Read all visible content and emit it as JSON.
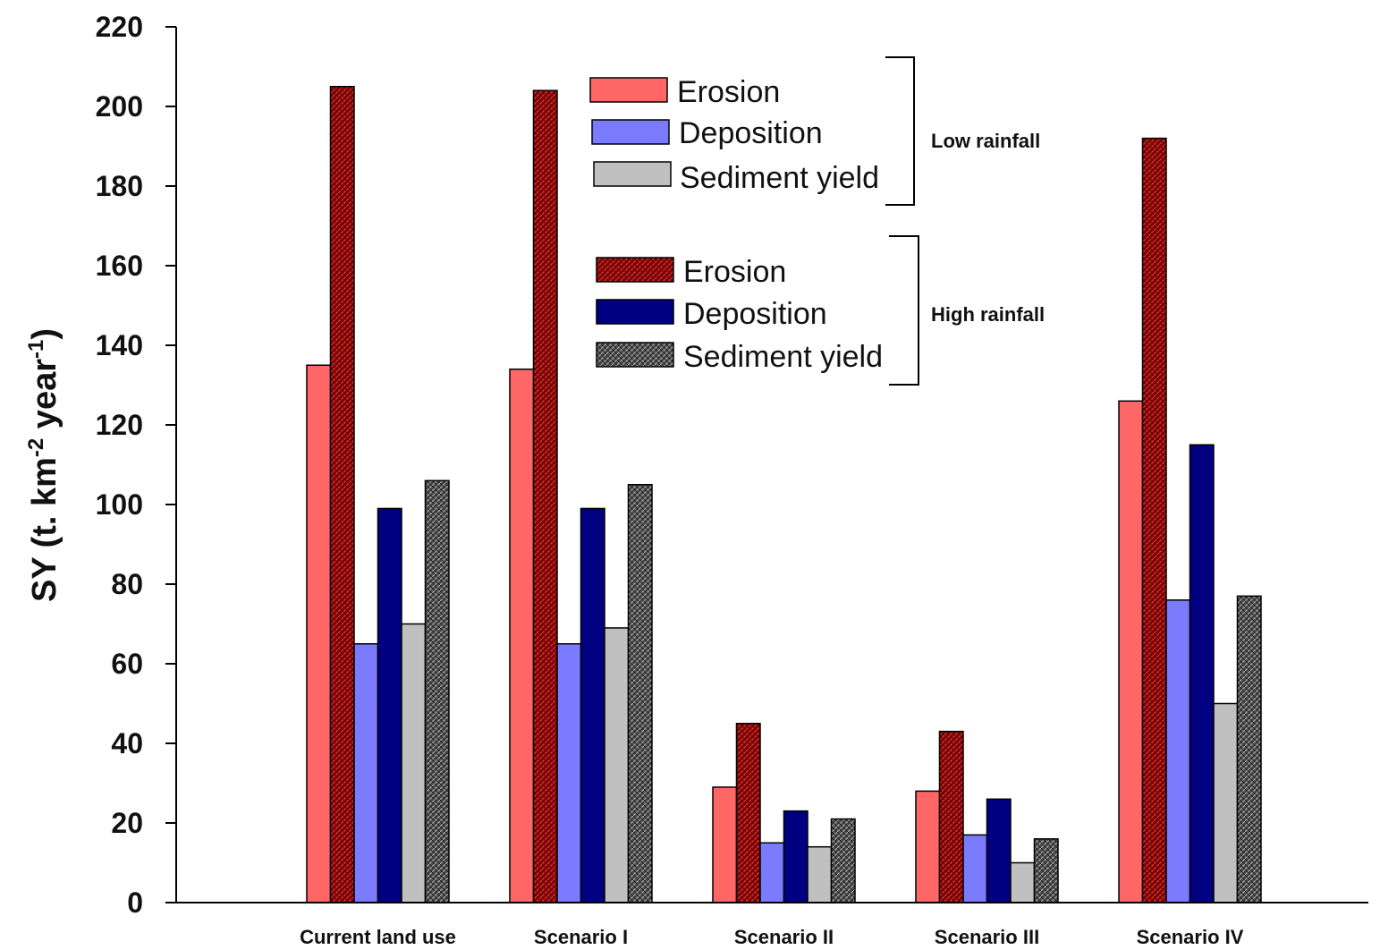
{
  "chart_data": {
    "type": "bar",
    "title": "",
    "xlabel": "",
    "ylabel": "SY (t. km-2 year-1)",
    "ylabel_parts": [
      "SY (t. km",
      "-2",
      " year",
      "-1",
      ")"
    ],
    "ylim": [
      0,
      220
    ],
    "yticks": [
      0,
      20,
      40,
      60,
      80,
      100,
      120,
      140,
      160,
      180,
      200,
      220
    ],
    "grid": false,
    "legend_placement": "top-center",
    "categories": [
      "Current land use",
      "Scenario I",
      "Scenario II",
      "Scenario III",
      "Scenario IV"
    ],
    "series": [
      {
        "name": "Erosion",
        "group": "Low rainfall",
        "color": "#ff6666",
        "pattern": "solid",
        "values": [
          135,
          134,
          29,
          28,
          126
        ]
      },
      {
        "name": "Erosion",
        "group": "High rainfall",
        "color": "#8b0000",
        "pattern": "hatched",
        "values": [
          205,
          204,
          45,
          43,
          192
        ]
      },
      {
        "name": "Deposition",
        "group": "Low rainfall",
        "color": "#7b7bff",
        "pattern": "solid",
        "values": [
          65,
          65,
          15,
          17,
          76
        ]
      },
      {
        "name": "Deposition",
        "group": "High rainfall",
        "color": "#000080",
        "pattern": "solid",
        "values": [
          99,
          99,
          23,
          26,
          115
        ]
      },
      {
        "name": "Sediment yield",
        "group": "Low rainfall",
        "color": "#c0c0c0",
        "pattern": "solid",
        "values": [
          70,
          69,
          14,
          10,
          50
        ]
      },
      {
        "name": "Sediment yield",
        "group": "High rainfall",
        "color": "#555555",
        "pattern": "hatched",
        "values": [
          106,
          105,
          21,
          16,
          77
        ]
      }
    ],
    "legend_groups": [
      {
        "label": "Low rainfall",
        "entries": [
          "Erosion",
          "Deposition",
          "Sediment yield"
        ]
      },
      {
        "label": "High rainfall",
        "entries": [
          "Erosion",
          "Deposition",
          "Sediment yield"
        ]
      }
    ]
  }
}
